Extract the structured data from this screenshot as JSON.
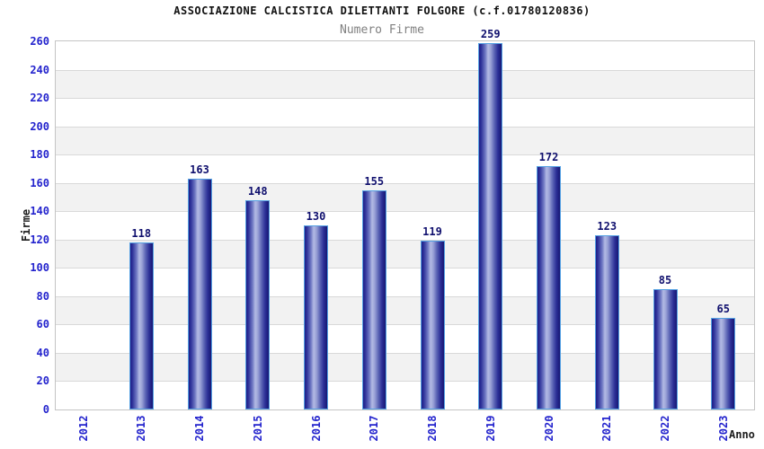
{
  "chart_data": {
    "type": "bar",
    "title": "ASSOCIAZIONE CALCISTICA DILETTANTI FOLGORE (c.f.01780120836)",
    "subtitle": "Numero Firme",
    "xlabel": "Anno",
    "ylabel": "Firme",
    "categories": [
      "2012",
      "2013",
      "2014",
      "2015",
      "2016",
      "2017",
      "2018",
      "2019",
      "2020",
      "2021",
      "2022",
      "2023"
    ],
    "values": [
      0,
      118,
      163,
      148,
      130,
      155,
      119,
      259,
      172,
      123,
      85,
      65
    ],
    "ylim": [
      0,
      260
    ],
    "ytick_step": 20,
    "yticks": [
      0,
      20,
      40,
      60,
      80,
      100,
      120,
      140,
      160,
      180,
      200,
      220,
      240,
      260
    ],
    "grid": true,
    "legend_position": "none",
    "bar_value_labels_visible": true,
    "colors": {
      "background": "#ffffff",
      "axis_tick_blue": "#2323cd",
      "value_label_navy": "#10106e",
      "title": "#111111",
      "subtitle": "#808080",
      "bar_border": "#55a1e3",
      "bar_edge_navy": "#1d1d87",
      "bar_center_light": "#b3bae4",
      "band_stripe": "#f2f2f2",
      "gridline": "#d9d9d9",
      "plot_border": "#c4c4c4"
    }
  }
}
